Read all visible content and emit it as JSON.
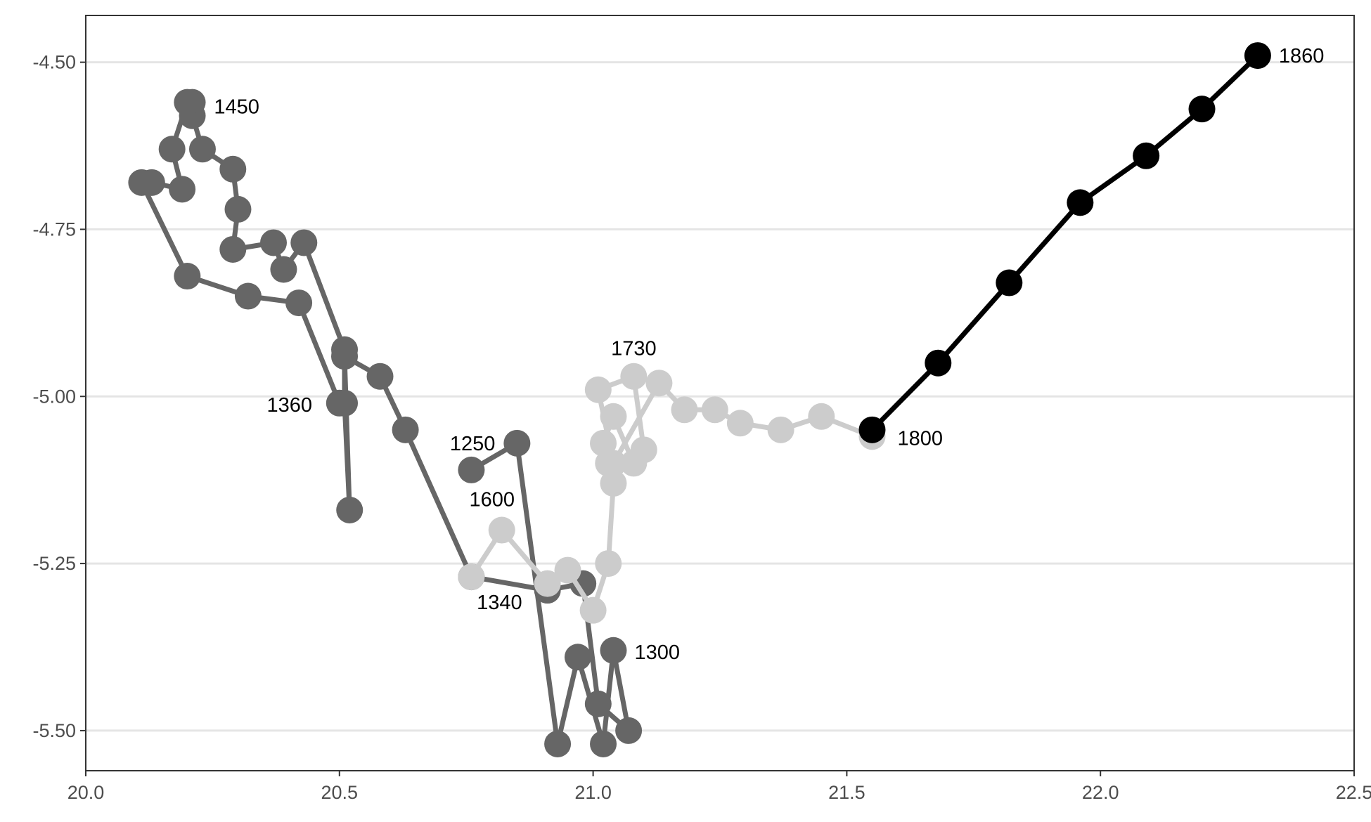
{
  "chart_data": {
    "type": "line",
    "title": "",
    "xlabel": "",
    "ylabel": "",
    "xlim": [
      20.0,
      22.5
    ],
    "ylim": [
      -5.56,
      -4.43
    ],
    "x_ticks": [
      "20.0",
      "20.5",
      "21.0",
      "21.5",
      "22.0",
      "22.5"
    ],
    "y_ticks": [
      "-4.50",
      "-4.75",
      "-5.00",
      "-5.25",
      "-5.50"
    ],
    "x_tick_values": [
      20.0,
      20.5,
      21.0,
      21.5,
      22.0,
      22.5
    ],
    "y_tick_values": [
      -4.5,
      -4.75,
      -5.0,
      -5.25,
      -5.5
    ],
    "grid": true,
    "legend": "none",
    "series": [
      {
        "color": "#666666",
        "points": [
          [
            20.76,
            -5.11
          ],
          [
            20.85,
            -5.07
          ],
          [
            20.93,
            -5.52
          ],
          [
            20.97,
            -5.39
          ],
          [
            21.02,
            -5.52
          ],
          [
            21.04,
            -5.38
          ],
          [
            21.07,
            -5.5
          ],
          [
            21.01,
            -5.46
          ],
          [
            20.98,
            -5.28
          ],
          [
            20.91,
            -5.29
          ],
          [
            20.76,
            -5.27
          ],
          [
            20.63,
            -5.05
          ],
          [
            20.58,
            -4.97
          ],
          [
            20.51,
            -4.94
          ],
          [
            20.52,
            -5.17
          ],
          [
            20.51,
            -5.01
          ],
          [
            20.51,
            -4.93
          ],
          [
            20.43,
            -4.77
          ],
          [
            20.39,
            -4.81
          ],
          [
            20.37,
            -4.77
          ],
          [
            20.29,
            -4.78
          ],
          [
            20.3,
            -4.72
          ],
          [
            20.29,
            -4.66
          ],
          [
            20.23,
            -4.63
          ],
          [
            20.21,
            -4.58
          ],
          [
            20.21,
            -4.56
          ],
          [
            20.2,
            -4.56
          ],
          [
            20.17,
            -4.63
          ],
          [
            20.19,
            -4.69
          ],
          [
            20.13,
            -4.68
          ],
          [
            20.11,
            -4.68
          ],
          [
            20.2,
            -4.82
          ],
          [
            20.32,
            -4.85
          ],
          [
            20.42,
            -4.86
          ],
          [
            20.5,
            -5.01
          ]
        ]
      },
      {
        "color": "#cccccc",
        "points": [
          [
            20.76,
            -5.27
          ],
          [
            20.82,
            -5.2
          ],
          [
            20.91,
            -5.28
          ],
          [
            20.95,
            -5.26
          ],
          [
            21.0,
            -5.32
          ],
          [
            21.03,
            -5.25
          ],
          [
            21.04,
            -5.13
          ],
          [
            21.03,
            -5.1
          ],
          [
            21.02,
            -5.07
          ],
          [
            21.04,
            -5.03
          ],
          [
            21.08,
            -5.1
          ],
          [
            21.1,
            -5.08
          ],
          [
            21.08,
            -4.97
          ],
          [
            21.01,
            -4.99
          ],
          [
            21.04,
            -5.1
          ],
          [
            21.13,
            -4.98
          ],
          [
            21.18,
            -5.02
          ],
          [
            21.24,
            -5.02
          ],
          [
            21.29,
            -5.04
          ],
          [
            21.37,
            -5.05
          ],
          [
            21.45,
            -5.03
          ],
          [
            21.55,
            -5.06
          ]
        ]
      },
      {
        "color": "#000000",
        "points": [
          [
            21.55,
            -5.05
          ],
          [
            21.68,
            -4.95
          ],
          [
            21.82,
            -4.83
          ],
          [
            21.96,
            -4.71
          ],
          [
            22.09,
            -4.64
          ],
          [
            22.2,
            -4.57
          ],
          [
            22.31,
            -4.49
          ]
        ]
      }
    ],
    "labels": [
      {
        "text": "1860",
        "x": 22.31,
        "y": -4.49
      },
      {
        "text": "1450",
        "x": 20.2,
        "y": -4.56
      },
      {
        "text": "1730",
        "x": 21.08,
        "y": -4.97
      },
      {
        "text": "1360",
        "x": 20.51,
        "y": -5.01
      },
      {
        "text": "1800",
        "x": 21.55,
        "y": -5.06
      },
      {
        "text": "1250",
        "x": 20.76,
        "y": -5.11
      },
      {
        "text": "1600",
        "x": 20.82,
        "y": -5.2
      },
      {
        "text": "1340",
        "x": 20.76,
        "y": -5.27
      },
      {
        "text": "1300",
        "x": 21.04,
        "y": -5.38
      }
    ]
  }
}
